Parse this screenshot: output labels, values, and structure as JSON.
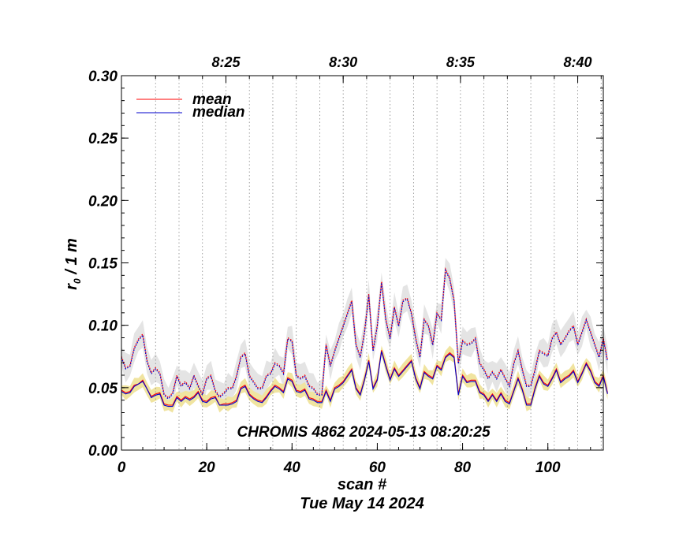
{
  "chart_data": {
    "type": "line",
    "title": "",
    "xlabel": "scan #",
    "xlabel2": "Tue May 14 2024",
    "ylabel_main": "r",
    "ylabel_sub": "0",
    "ylabel_rest": " / 1 m",
    "annotation": "CHROMIS 4862 2024-05-13 08:20:25",
    "xlim": [
      0,
      113
    ],
    "ylim": [
      0,
      0.3
    ],
    "x_ticks": [
      0,
      20,
      40,
      60,
      80,
      100
    ],
    "x_tick_labels": [
      "0",
      "20",
      "40",
      "60",
      "80",
      "100"
    ],
    "y_ticks": [
      0,
      0.05,
      0.1,
      0.15,
      0.2,
      0.25,
      0.3
    ],
    "y_tick_labels": [
      "0.00",
      "0.05",
      "0.10",
      "0.15",
      "0.20",
      "0.25",
      "0.30"
    ],
    "top_ticks": [
      {
        "x": 24.5,
        "label": "8:25"
      },
      {
        "x": 52.0,
        "label": "8:30"
      },
      {
        "x": 79.5,
        "label": "8:35"
      },
      {
        "x": 107.0,
        "label": "8:40"
      }
    ],
    "minute_lines": [
      8.0,
      13.5,
      19.0,
      24.5,
      30.0,
      35.5,
      41.0,
      46.5,
      52.0,
      57.5,
      63.0,
      68.5,
      74.0,
      79.5,
      85.0,
      90.5,
      96.0,
      101.5,
      107.0,
      112.5
    ],
    "legend": [
      {
        "name": "mean",
        "color": "#ff0000"
      },
      {
        "name": "median",
        "color": "#0000cc"
      }
    ],
    "colors": {
      "mean": "#ff0000",
      "median": "#0000cc",
      "band_low": "#f0e4a0",
      "band_high": "#e4e4e4"
    },
    "series": [
      {
        "name": "mean",
        "style": "solid",
        "values": [
          0.048,
          0.046,
          0.047,
          0.052,
          0.053,
          0.056,
          0.049,
          0.043,
          0.045,
          0.046,
          0.037,
          0.036,
          0.036,
          0.043,
          0.04,
          0.043,
          0.041,
          0.043,
          0.047,
          0.04,
          0.039,
          0.042,
          0.043,
          0.036,
          0.037,
          0.037,
          0.038,
          0.04,
          0.05,
          0.052,
          0.045,
          0.042,
          0.04,
          0.039,
          0.043,
          0.048,
          0.052,
          0.05,
          0.047,
          0.058,
          0.056,
          0.048,
          0.047,
          0.049,
          0.042,
          0.041,
          0.039,
          0.039,
          0.048,
          0.04,
          0.05,
          0.052,
          0.055,
          0.06,
          0.065,
          0.05,
          0.045,
          0.057,
          0.072,
          0.05,
          0.057,
          0.08,
          0.068,
          0.057,
          0.066,
          0.06,
          0.064,
          0.068,
          0.072,
          0.058,
          0.05,
          0.063,
          0.06,
          0.058,
          0.068,
          0.065,
          0.075,
          0.078,
          0.075,
          0.045,
          0.06,
          0.055,
          0.056,
          0.056,
          0.047,
          0.045,
          0.04,
          0.045,
          0.04,
          0.046,
          0.04,
          0.038,
          0.048,
          0.058,
          0.049,
          0.037,
          0.037,
          0.05,
          0.06,
          0.054,
          0.052,
          0.058,
          0.065,
          0.055,
          0.058,
          0.06,
          0.064,
          0.055,
          0.062,
          0.07,
          0.064,
          0.055,
          0.052,
          0.06,
          0.046
        ]
      },
      {
        "name": "median",
        "style": "solid",
        "values": [
          0.047,
          0.045,
          0.046,
          0.051,
          0.053,
          0.055,
          0.049,
          0.042,
          0.044,
          0.045,
          0.036,
          0.035,
          0.035,
          0.042,
          0.039,
          0.042,
          0.04,
          0.042,
          0.046,
          0.039,
          0.038,
          0.041,
          0.042,
          0.036,
          0.036,
          0.036,
          0.037,
          0.039,
          0.049,
          0.051,
          0.044,
          0.041,
          0.039,
          0.038,
          0.042,
          0.047,
          0.051,
          0.049,
          0.046,
          0.057,
          0.055,
          0.047,
          0.046,
          0.048,
          0.041,
          0.04,
          0.038,
          0.038,
          0.047,
          0.039,
          0.049,
          0.051,
          0.054,
          0.059,
          0.064,
          0.049,
          0.044,
          0.056,
          0.071,
          0.049,
          0.056,
          0.079,
          0.067,
          0.056,
          0.065,
          0.059,
          0.063,
          0.067,
          0.071,
          0.057,
          0.049,
          0.062,
          0.059,
          0.057,
          0.067,
          0.064,
          0.074,
          0.077,
          0.074,
          0.044,
          0.059,
          0.054,
          0.055,
          0.055,
          0.046,
          0.044,
          0.039,
          0.044,
          0.039,
          0.045,
          0.039,
          0.037,
          0.047,
          0.057,
          0.048,
          0.036,
          0.036,
          0.049,
          0.059,
          0.053,
          0.051,
          0.057,
          0.064,
          0.054,
          0.057,
          0.059,
          0.063,
          0.054,
          0.061,
          0.069,
          0.063,
          0.054,
          0.051,
          0.059,
          0.045
        ]
      },
      {
        "name": "mean (upper)",
        "style": "dotted",
        "color": "#ff0000",
        "values": [
          0.075,
          0.066,
          0.068,
          0.082,
          0.089,
          0.093,
          0.072,
          0.062,
          0.066,
          0.062,
          0.045,
          0.042,
          0.046,
          0.06,
          0.052,
          0.055,
          0.05,
          0.06,
          0.052,
          0.045,
          0.058,
          0.06,
          0.048,
          0.043,
          0.046,
          0.05,
          0.05,
          0.06,
          0.075,
          0.078,
          0.06,
          0.055,
          0.05,
          0.05,
          0.06,
          0.062,
          0.07,
          0.068,
          0.062,
          0.09,
          0.088,
          0.06,
          0.058,
          0.06,
          0.052,
          0.05,
          0.045,
          0.045,
          0.085,
          0.068,
          0.08,
          0.09,
          0.1,
          0.11,
          0.12,
          0.085,
          0.075,
          0.095,
          0.125,
          0.08,
          0.1,
          0.135,
          0.105,
          0.09,
          0.115,
          0.1,
          0.12,
          0.122,
          0.11,
          0.09,
          0.075,
          0.105,
          0.1,
          0.085,
          0.11,
          0.105,
          0.145,
          0.138,
          0.12,
          0.07,
          0.088,
          0.085,
          0.086,
          0.09,
          0.07,
          0.065,
          0.058,
          0.063,
          0.058,
          0.065,
          0.058,
          0.052,
          0.07,
          0.08,
          0.065,
          0.052,
          0.052,
          0.065,
          0.08,
          0.078,
          0.076,
          0.09,
          0.095,
          0.085,
          0.09,
          0.096,
          0.1,
          0.085,
          0.095,
          0.105,
          0.095,
          0.085,
          0.075,
          0.09,
          0.072
        ]
      },
      {
        "name": "median (upper)",
        "style": "dotted",
        "color": "#0000cc",
        "values": [
          0.074,
          0.065,
          0.067,
          0.081,
          0.088,
          0.092,
          0.071,
          0.061,
          0.065,
          0.061,
          0.044,
          0.041,
          0.045,
          0.059,
          0.051,
          0.054,
          0.049,
          0.059,
          0.051,
          0.044,
          0.057,
          0.059,
          0.047,
          0.042,
          0.045,
          0.049,
          0.049,
          0.059,
          0.074,
          0.077,
          0.059,
          0.054,
          0.049,
          0.049,
          0.059,
          0.061,
          0.069,
          0.067,
          0.061,
          0.089,
          0.087,
          0.059,
          0.057,
          0.059,
          0.051,
          0.049,
          0.044,
          0.044,
          0.084,
          0.067,
          0.079,
          0.089,
          0.099,
          0.109,
          0.119,
          0.084,
          0.074,
          0.094,
          0.124,
          0.079,
          0.099,
          0.134,
          0.104,
          0.089,
          0.114,
          0.099,
          0.119,
          0.121,
          0.109,
          0.089,
          0.074,
          0.104,
          0.099,
          0.084,
          0.109,
          0.104,
          0.144,
          0.137,
          0.119,
          0.069,
          0.087,
          0.084,
          0.085,
          0.089,
          0.069,
          0.064,
          0.057,
          0.062,
          0.057,
          0.064,
          0.057,
          0.051,
          0.069,
          0.079,
          0.064,
          0.051,
          0.051,
          0.064,
          0.079,
          0.077,
          0.075,
          0.089,
          0.094,
          0.084,
          0.089,
          0.095,
          0.099,
          0.084,
          0.094,
          0.104,
          0.094,
          0.084,
          0.074,
          0.089,
          0.071
        ]
      }
    ],
    "band_low_spread": 0.006,
    "band_high_spread": 0.012
  }
}
